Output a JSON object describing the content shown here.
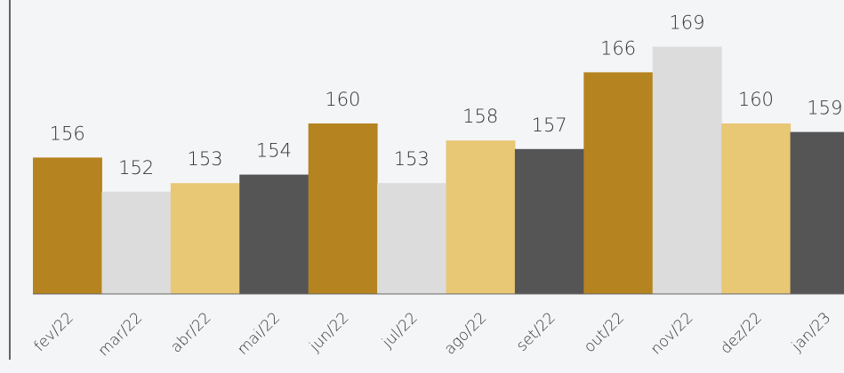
{
  "chart_data": {
    "type": "bar",
    "categories": [
      "fev/22",
      "mar/22",
      "abr/22",
      "mai/22",
      "jun/22",
      "jul/22",
      "ago/22",
      "set/22",
      "out/22",
      "nov/22",
      "dez/22",
      "jan/23"
    ],
    "values": [
      156,
      152,
      153,
      154,
      160,
      153,
      158,
      157,
      166,
      169,
      160,
      159
    ],
    "data_labels": [
      "156",
      "152",
      "153",
      "154",
      "160",
      "153",
      "158",
      "157",
      "166",
      "169",
      "160",
      "159"
    ],
    "bar_colors": [
      "#b5831f",
      "#dcdcdc",
      "#e8c775",
      "#555555",
      "#b5831f",
      "#dcdcdc",
      "#e8c775",
      "#555555",
      "#b5831f",
      "#dcdcdc",
      "#e8c775",
      "#555555"
    ],
    "ylim": [
      140,
      170
    ],
    "title": "",
    "xlabel": "",
    "ylabel": "",
    "grid": false,
    "legend": "none"
  },
  "colors": {
    "background": "#f4f5f7",
    "axis": "#333333",
    "text": "#333333"
  }
}
